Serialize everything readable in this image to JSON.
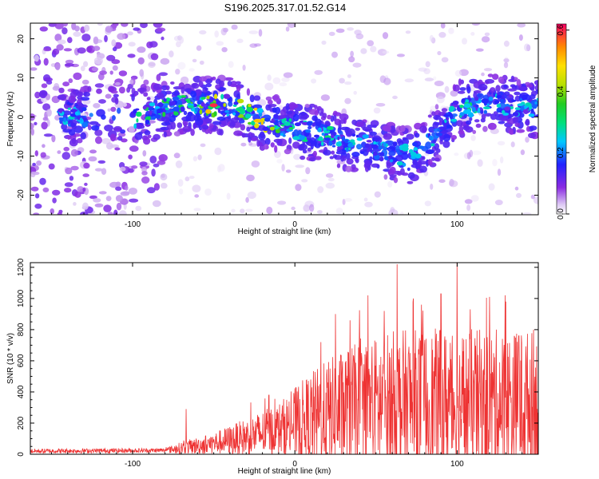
{
  "title": "S196.2025.317.01.52.G14",
  "chart_data": [
    {
      "type": "heatmap",
      "xlabel": "Height of straight line (km)",
      "ylabel": "Frequency (Hz)",
      "xlim": [
        -163,
        150
      ],
      "ylim": [
        -25,
        24
      ],
      "xticks": [
        -100,
        0,
        100
      ],
      "yticks": [
        -20,
        -10,
        0,
        10,
        20
      ],
      "xtick_labels": [
        "-100",
        "0",
        "100"
      ],
      "ytick_labels": [
        "-20",
        "-10",
        "0",
        "10",
        "20"
      ],
      "colorbar": {
        "label": "Normalized spectral amplitude",
        "range": [
          0.0,
          0.62
        ],
        "ticks": [
          0.0,
          0.2,
          0.4,
          0.6
        ],
        "tick_labels": [
          "0.0",
          "0.2",
          "0.4",
          "0.6"
        ]
      },
      "ridge": [
        {
          "x": -140,
          "f": 0,
          "amp": 0.25
        },
        {
          "x": -125,
          "f": 0.5,
          "amp": 0.2
        },
        {
          "x": -95,
          "f": 0,
          "amp": 0.3
        },
        {
          "x": -80,
          "f": 2,
          "amp": 0.35
        },
        {
          "x": -65,
          "f": 3,
          "amp": 0.35
        },
        {
          "x": -50,
          "f": 3,
          "amp": 0.55
        },
        {
          "x": -40,
          "f": 3,
          "amp": 0.45
        },
        {
          "x": -30,
          "f": 1,
          "amp": 0.45
        },
        {
          "x": -20,
          "f": -1,
          "amp": 0.55
        },
        {
          "x": -10,
          "f": -2,
          "amp": 0.35
        },
        {
          "x": 0,
          "f": -3,
          "amp": 0.3
        },
        {
          "x": 10,
          "f": -4,
          "amp": 0.3
        },
        {
          "x": 20,
          "f": -5,
          "amp": 0.3
        },
        {
          "x": 30,
          "f": -6,
          "amp": 0.25
        },
        {
          "x": 40,
          "f": -7,
          "amp": 0.25
        },
        {
          "x": 50,
          "f": -8,
          "amp": 0.25
        },
        {
          "x": 60,
          "f": -9,
          "amp": 0.25
        },
        {
          "x": 70,
          "f": -10,
          "amp": 0.25
        },
        {
          "x": 80,
          "f": -8,
          "amp": 0.25
        },
        {
          "x": 90,
          "f": -3,
          "amp": 0.25
        },
        {
          "x": 100,
          "f": 2,
          "amp": 0.3
        },
        {
          "x": 110,
          "f": 3,
          "amp": 0.3
        },
        {
          "x": 120,
          "f": 4,
          "amp": 0.25
        },
        {
          "x": 130,
          "f": 3,
          "amp": 0.25
        },
        {
          "x": 140,
          "f": 3,
          "amp": 0.3
        },
        {
          "x": 148,
          "f": 2,
          "amp": 0.25
        }
      ]
    },
    {
      "type": "line",
      "xlabel": "Height of straight line (km)",
      "ylabel": "SNR (10 * v/v)",
      "xlim": [
        -163,
        150
      ],
      "ylim": [
        0,
        1230
      ],
      "xticks": [
        -100,
        0,
        100
      ],
      "yticks": [
        0,
        200,
        400,
        600,
        800,
        1000,
        1200
      ],
      "xtick_labels": [
        "-100",
        "0",
        "100"
      ],
      "ytick_labels": [
        "0",
        "200",
        "400",
        "600",
        "800",
        "1000",
        "1200"
      ],
      "color": "#ee3333",
      "envelope": [
        {
          "x": -163,
          "base": 20,
          "spread": 15
        },
        {
          "x": -80,
          "base": 25,
          "spread": 15
        },
        {
          "x": -70,
          "base": 40,
          "spread": 40
        },
        {
          "x": -50,
          "base": 70,
          "spread": 70
        },
        {
          "x": -30,
          "base": 110,
          "spread": 120
        },
        {
          "x": -10,
          "base": 160,
          "spread": 170
        },
        {
          "x": 10,
          "base": 230,
          "spread": 300
        },
        {
          "x": 30,
          "base": 280,
          "spread": 400
        },
        {
          "x": 60,
          "base": 320,
          "spread": 480
        },
        {
          "x": 100,
          "base": 330,
          "spread": 480
        },
        {
          "x": 150,
          "base": 330,
          "spread": 470
        }
      ],
      "peaks": [
        {
          "x": -67,
          "y": 290
        },
        {
          "x": -16,
          "y": 380
        },
        {
          "x": 16,
          "y": 720
        },
        {
          "x": 25,
          "y": 900
        },
        {
          "x": 34,
          "y": 860
        },
        {
          "x": 45,
          "y": 1020
        },
        {
          "x": 55,
          "y": 920
        },
        {
          "x": 63,
          "y": 1220
        },
        {
          "x": 73,
          "y": 1000
        },
        {
          "x": 78,
          "y": 960
        },
        {
          "x": 90,
          "y": 1030
        },
        {
          "x": 100,
          "y": 1230
        },
        {
          "x": 108,
          "y": 930
        },
        {
          "x": 120,
          "y": 1010
        },
        {
          "x": 130,
          "y": 980
        },
        {
          "x": 138,
          "y": 760
        },
        {
          "x": 147,
          "y": 800
        }
      ]
    }
  ]
}
